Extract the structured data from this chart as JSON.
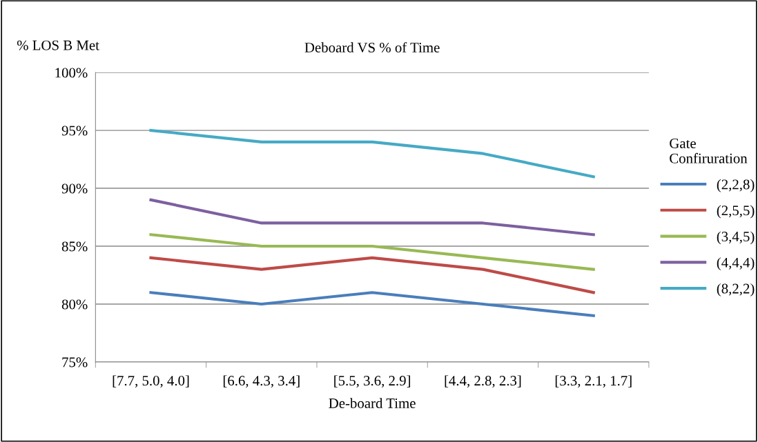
{
  "chart_data": {
    "type": "line",
    "title": "Deboard VS % of Time",
    "ylabel": "% LOS B Met",
    "xlabel": "De-board Time",
    "legend_title": "Gate\nConfiruration",
    "categories": [
      "[7.7, 5.0, 4.0]",
      "[6.6, 4.3, 3.4]",
      "[5.5, 3.6, 2.9]",
      "[4.4, 2.8, 2.3]",
      "[3.3, 2.1, 1.7]"
    ],
    "series": [
      {
        "name": "(2,2,8)",
        "color": "#4a7ebb",
        "values": [
          81,
          80,
          81,
          80,
          79
        ]
      },
      {
        "name": "(2,5,5)",
        "color": "#be4b48",
        "values": [
          84,
          83,
          84,
          83,
          81
        ]
      },
      {
        "name": "(3,4,5)",
        "color": "#98b954",
        "values": [
          86,
          85,
          85,
          84,
          83
        ]
      },
      {
        "name": "(4,4,4)",
        "color": "#7d60a0",
        "values": [
          89,
          87,
          87,
          87,
          86
        ]
      },
      {
        "name": "(8,2,2)",
        "color": "#46aac5",
        "values": [
          95,
          94,
          94,
          93,
          91
        ]
      }
    ],
    "ylim": [
      75,
      100
    ],
    "yticks": [
      {
        "value": 75,
        "label": "75%"
      },
      {
        "value": 80,
        "label": "80%"
      },
      {
        "value": 85,
        "label": "85%"
      },
      {
        "value": 90,
        "label": "90%"
      },
      {
        "value": 95,
        "label": "95%"
      },
      {
        "value": 100,
        "label": "100%"
      }
    ],
    "grid": "y",
    "legend": "right",
    "marker": "none",
    "line_style": "solid"
  }
}
